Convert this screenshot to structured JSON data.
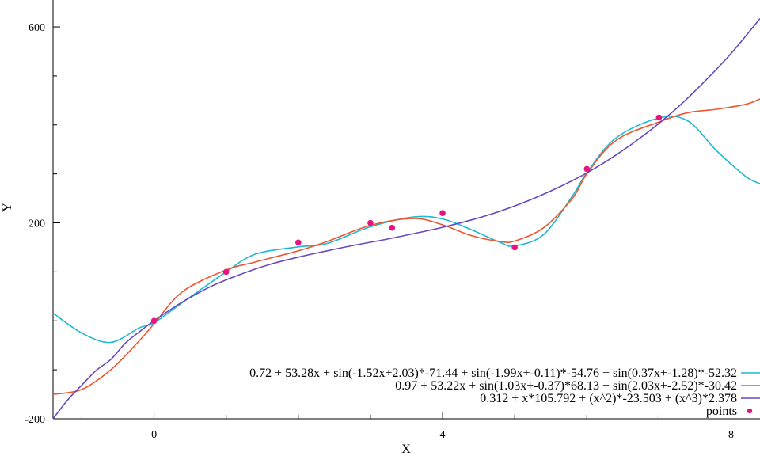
{
  "chart_data": {
    "type": "line",
    "xlabel": "X",
    "ylabel": "Y",
    "xlim": [
      -1.4,
      8.4
    ],
    "ylim": [
      -200,
      655
    ],
    "xticks": [
      0,
      4,
      8
    ],
    "xticks_minor": [
      -1,
      1,
      2,
      3,
      5,
      6,
      7
    ],
    "yticks": [
      -200,
      200,
      600
    ],
    "yticks_minor": [
      -100,
      0,
      100,
      300,
      400,
      500
    ],
    "grid": false,
    "legend_position": "bottom-right",
    "series": [
      {
        "name": "0.72 + 53.28x + sin(-1.52x+2.03)*-71.44 + sin(-1.99x+-0.11)*-54.76 + sin(0.37x+-1.28)*-52.32",
        "kind": "line",
        "color": "#1cb8d4",
        "x": [
          -1.4,
          -1.0,
          -0.6,
          -0.2,
          0.0,
          0.4,
          1.0,
          1.4,
          2.0,
          2.4,
          3.0,
          3.6,
          4.0,
          4.4,
          4.8,
          5.0,
          5.4,
          5.8,
          6.0,
          6.4,
          7.0,
          7.4,
          7.8,
          8.2,
          8.4
        ],
        "y": [
          16,
          -25,
          -44,
          -14,
          -4,
          38,
          100,
          136,
          151,
          158,
          192,
          212,
          208,
          186,
          160,
          153,
          176,
          255,
          302,
          373,
          414,
          408,
          347,
          295,
          280
        ]
      },
      {
        "name": "0.97 + 53.22x + sin(1.03x+-0.37)*68.13 + sin(2.03x+-2.52)*-30.42",
        "kind": "line",
        "color": "#f0562e",
        "x": [
          -1.4,
          -1.0,
          -0.6,
          -0.2,
          0.0,
          0.4,
          1.0,
          1.4,
          2.0,
          2.4,
          3.0,
          3.6,
          4.0,
          4.4,
          4.8,
          5.0,
          5.4,
          5.8,
          6.0,
          6.4,
          7.0,
          7.4,
          7.8,
          8.2,
          8.4
        ],
        "y": [
          -150,
          -140,
          -100,
          -40,
          -6,
          60,
          104,
          120,
          143,
          162,
          195,
          209,
          196,
          174,
          162,
          163,
          190,
          250,
          300,
          368,
          406,
          425,
          432,
          442,
          453
        ]
      },
      {
        "name": "0.312 + x*105.792 + (x^2)*-23.503 + (x^3)*2.378",
        "kind": "line",
        "color": "#6a47c0",
        "x": [
          -1.4,
          -1.2,
          -1.0,
          -0.8,
          -0.6,
          -0.4,
          -0.2,
          0.0,
          0.4,
          0.8,
          1.2,
          1.6,
          2.0,
          2.4,
          2.8,
          3.2,
          3.6,
          4.0,
          4.4,
          4.8,
          5.2,
          5.6,
          6.0,
          6.4,
          6.8,
          7.2,
          7.6,
          8.0,
          8.4
        ],
        "y": [
          -200,
          -162,
          -131,
          -101,
          -79,
          -46,
          -22,
          0.3,
          39,
          71,
          95,
          115,
          130,
          143,
          155,
          166,
          178,
          191,
          206,
          224,
          246,
          272,
          302,
          338,
          380,
          428,
          484,
          546,
          617
        ]
      },
      {
        "name": "points",
        "kind": "scatter",
        "color": "#e8137e",
        "x": [
          0,
          1,
          2,
          3,
          3.3,
          4,
          5,
          6,
          7
        ],
        "y": [
          0,
          100,
          160,
          200,
          190,
          220,
          150,
          310,
          415
        ]
      }
    ]
  }
}
